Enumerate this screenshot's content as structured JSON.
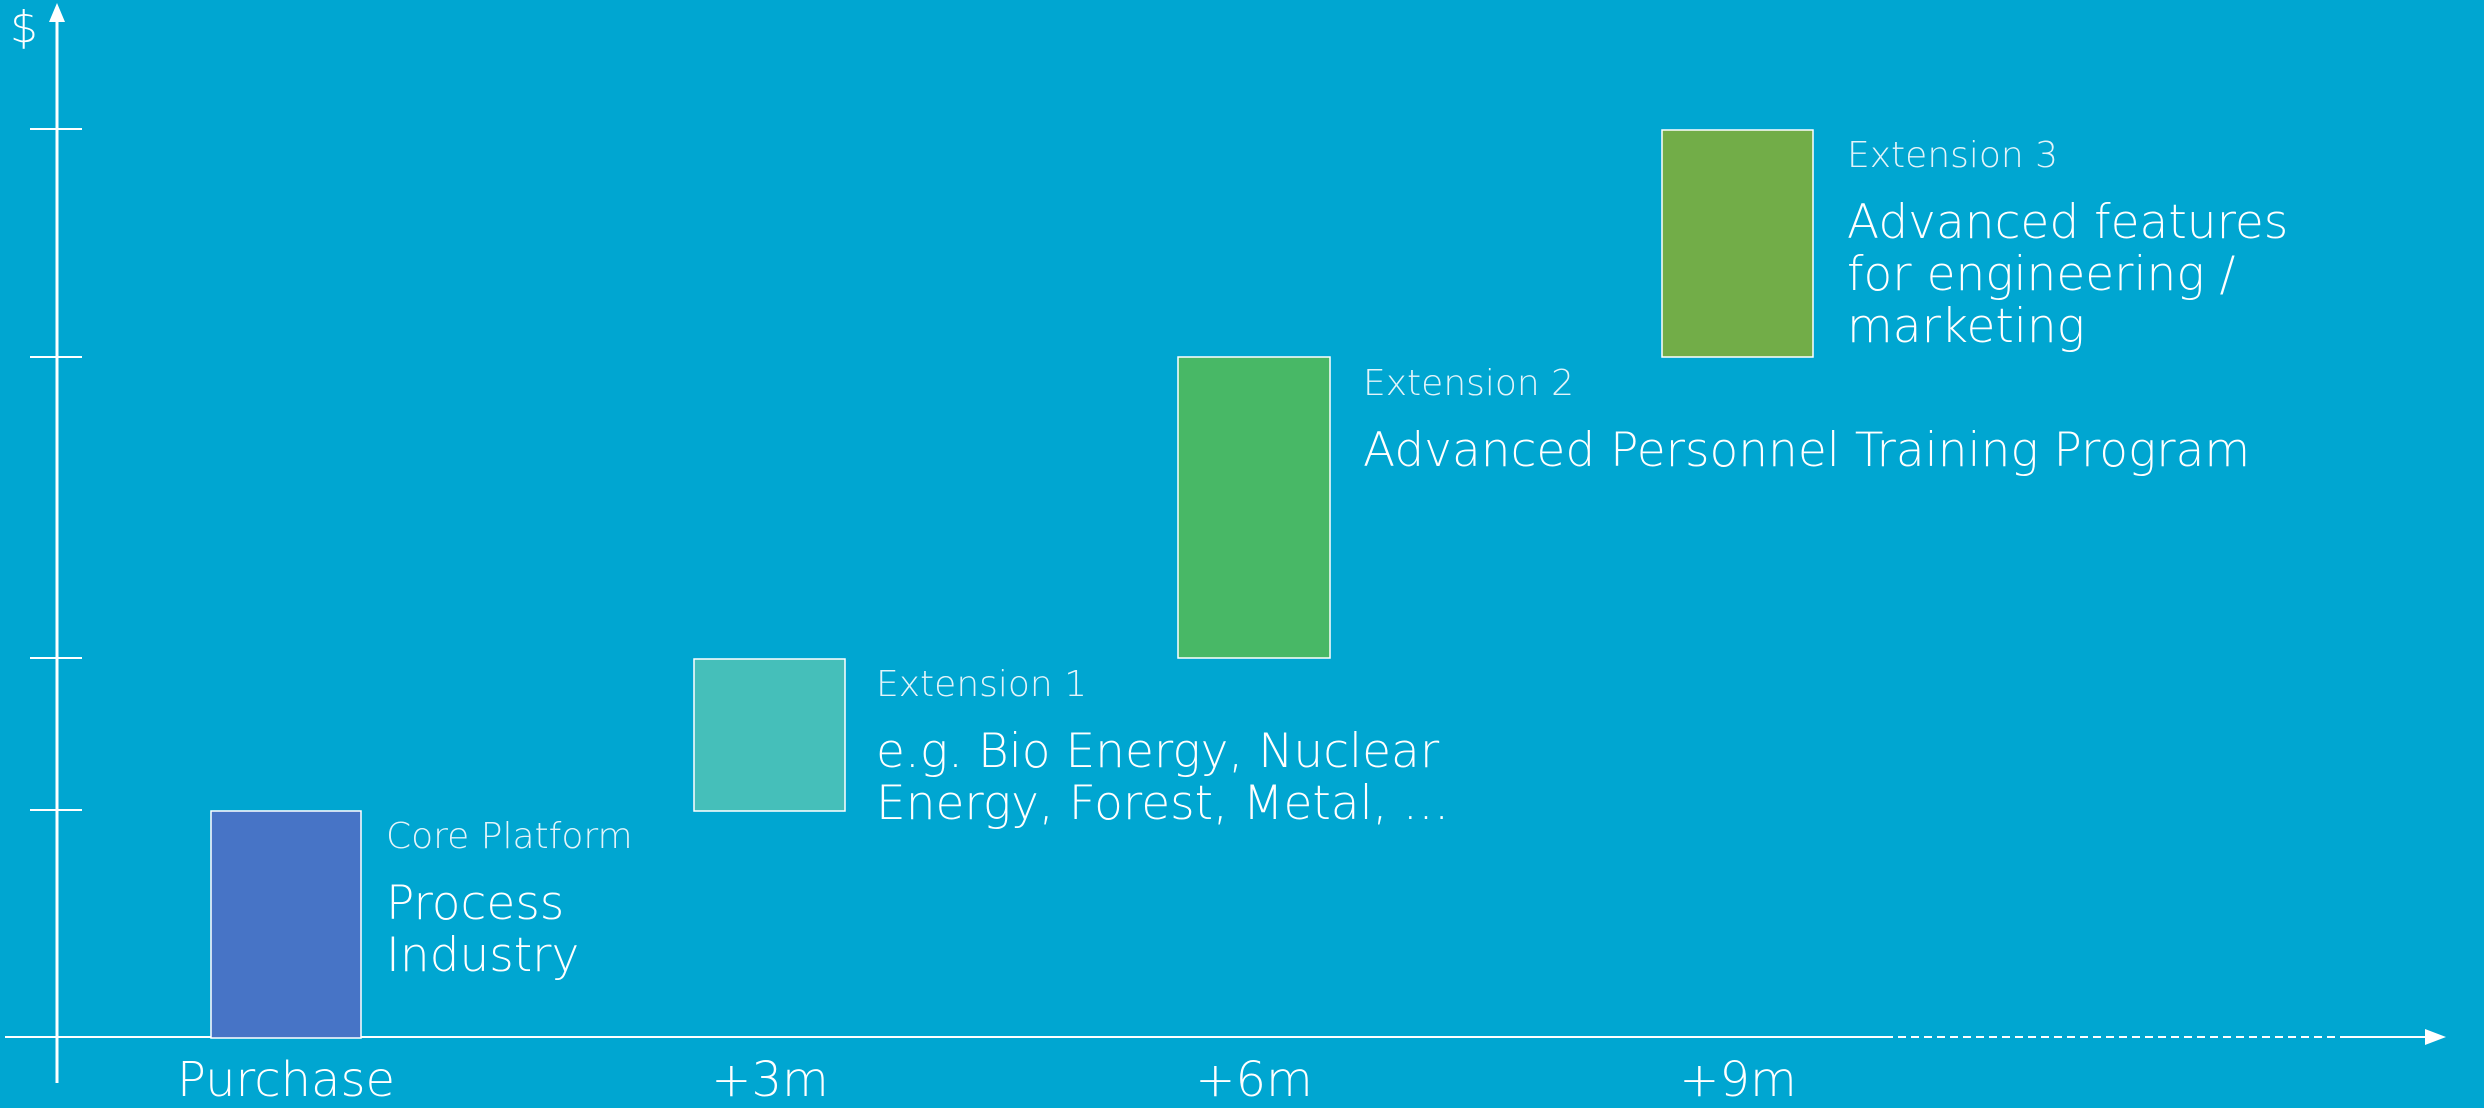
{
  "axis": {
    "y_symbol": "$"
  },
  "stages": [
    {
      "time": "+3m",
      "category": "Extension 1",
      "description": "e.g. Bio Energy, Nuclear Energy, Forest, Metal, …",
      "color": "#45bfba"
    },
    {
      "time": "+6m",
      "category": "Extension 2",
      "description": "Advanced Personnel Training Program",
      "color": "#48b866"
    },
    {
      "time": "+9m",
      "category": "Extension 3",
      "description": "Advanced features for engineering / marketing",
      "color": "#72ad48"
    }
  ],
  "core": {
    "time": "Purchase",
    "category": "Core Platform",
    "description": "Process Industry",
    "color": "#4774c6"
  },
  "colors": {
    "background": "#00a6d1",
    "axis": "#ffffff"
  }
}
